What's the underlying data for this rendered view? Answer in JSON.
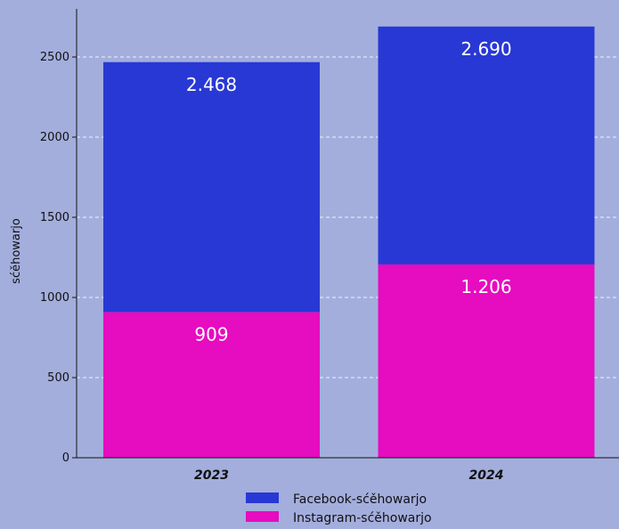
{
  "chart_data": {
    "type": "bar",
    "stacked": true,
    "categories": [
      "2023",
      "2024"
    ],
    "series": [
      {
        "name": "Instagram-sćěhowarjo",
        "values": [
          909,
          1206
        ],
        "labels": [
          "909",
          "1.206"
        ],
        "color": "#e60cbf"
      },
      {
        "name": "Facebook-sćěhowarjo",
        "values": [
          1559,
          1484
        ],
        "labels": [
          "2.468",
          "2.690"
        ],
        "color": "#2838d4"
      }
    ],
    "totals": [
      2468,
      2690
    ],
    "ylabel": "sćěhowarjo",
    "xlabel": "",
    "title": "",
    "ylim": [
      0,
      2800
    ],
    "yticks": [
      0,
      500,
      1000,
      1500,
      2000,
      2500
    ],
    "grid": true,
    "legend_position": "bottom",
    "legend_order": [
      "Facebook-sćěhowarjo",
      "Instagram-sćěhowarjo"
    ],
    "background": "#a3aedd",
    "grid_color": "#ffffff"
  }
}
